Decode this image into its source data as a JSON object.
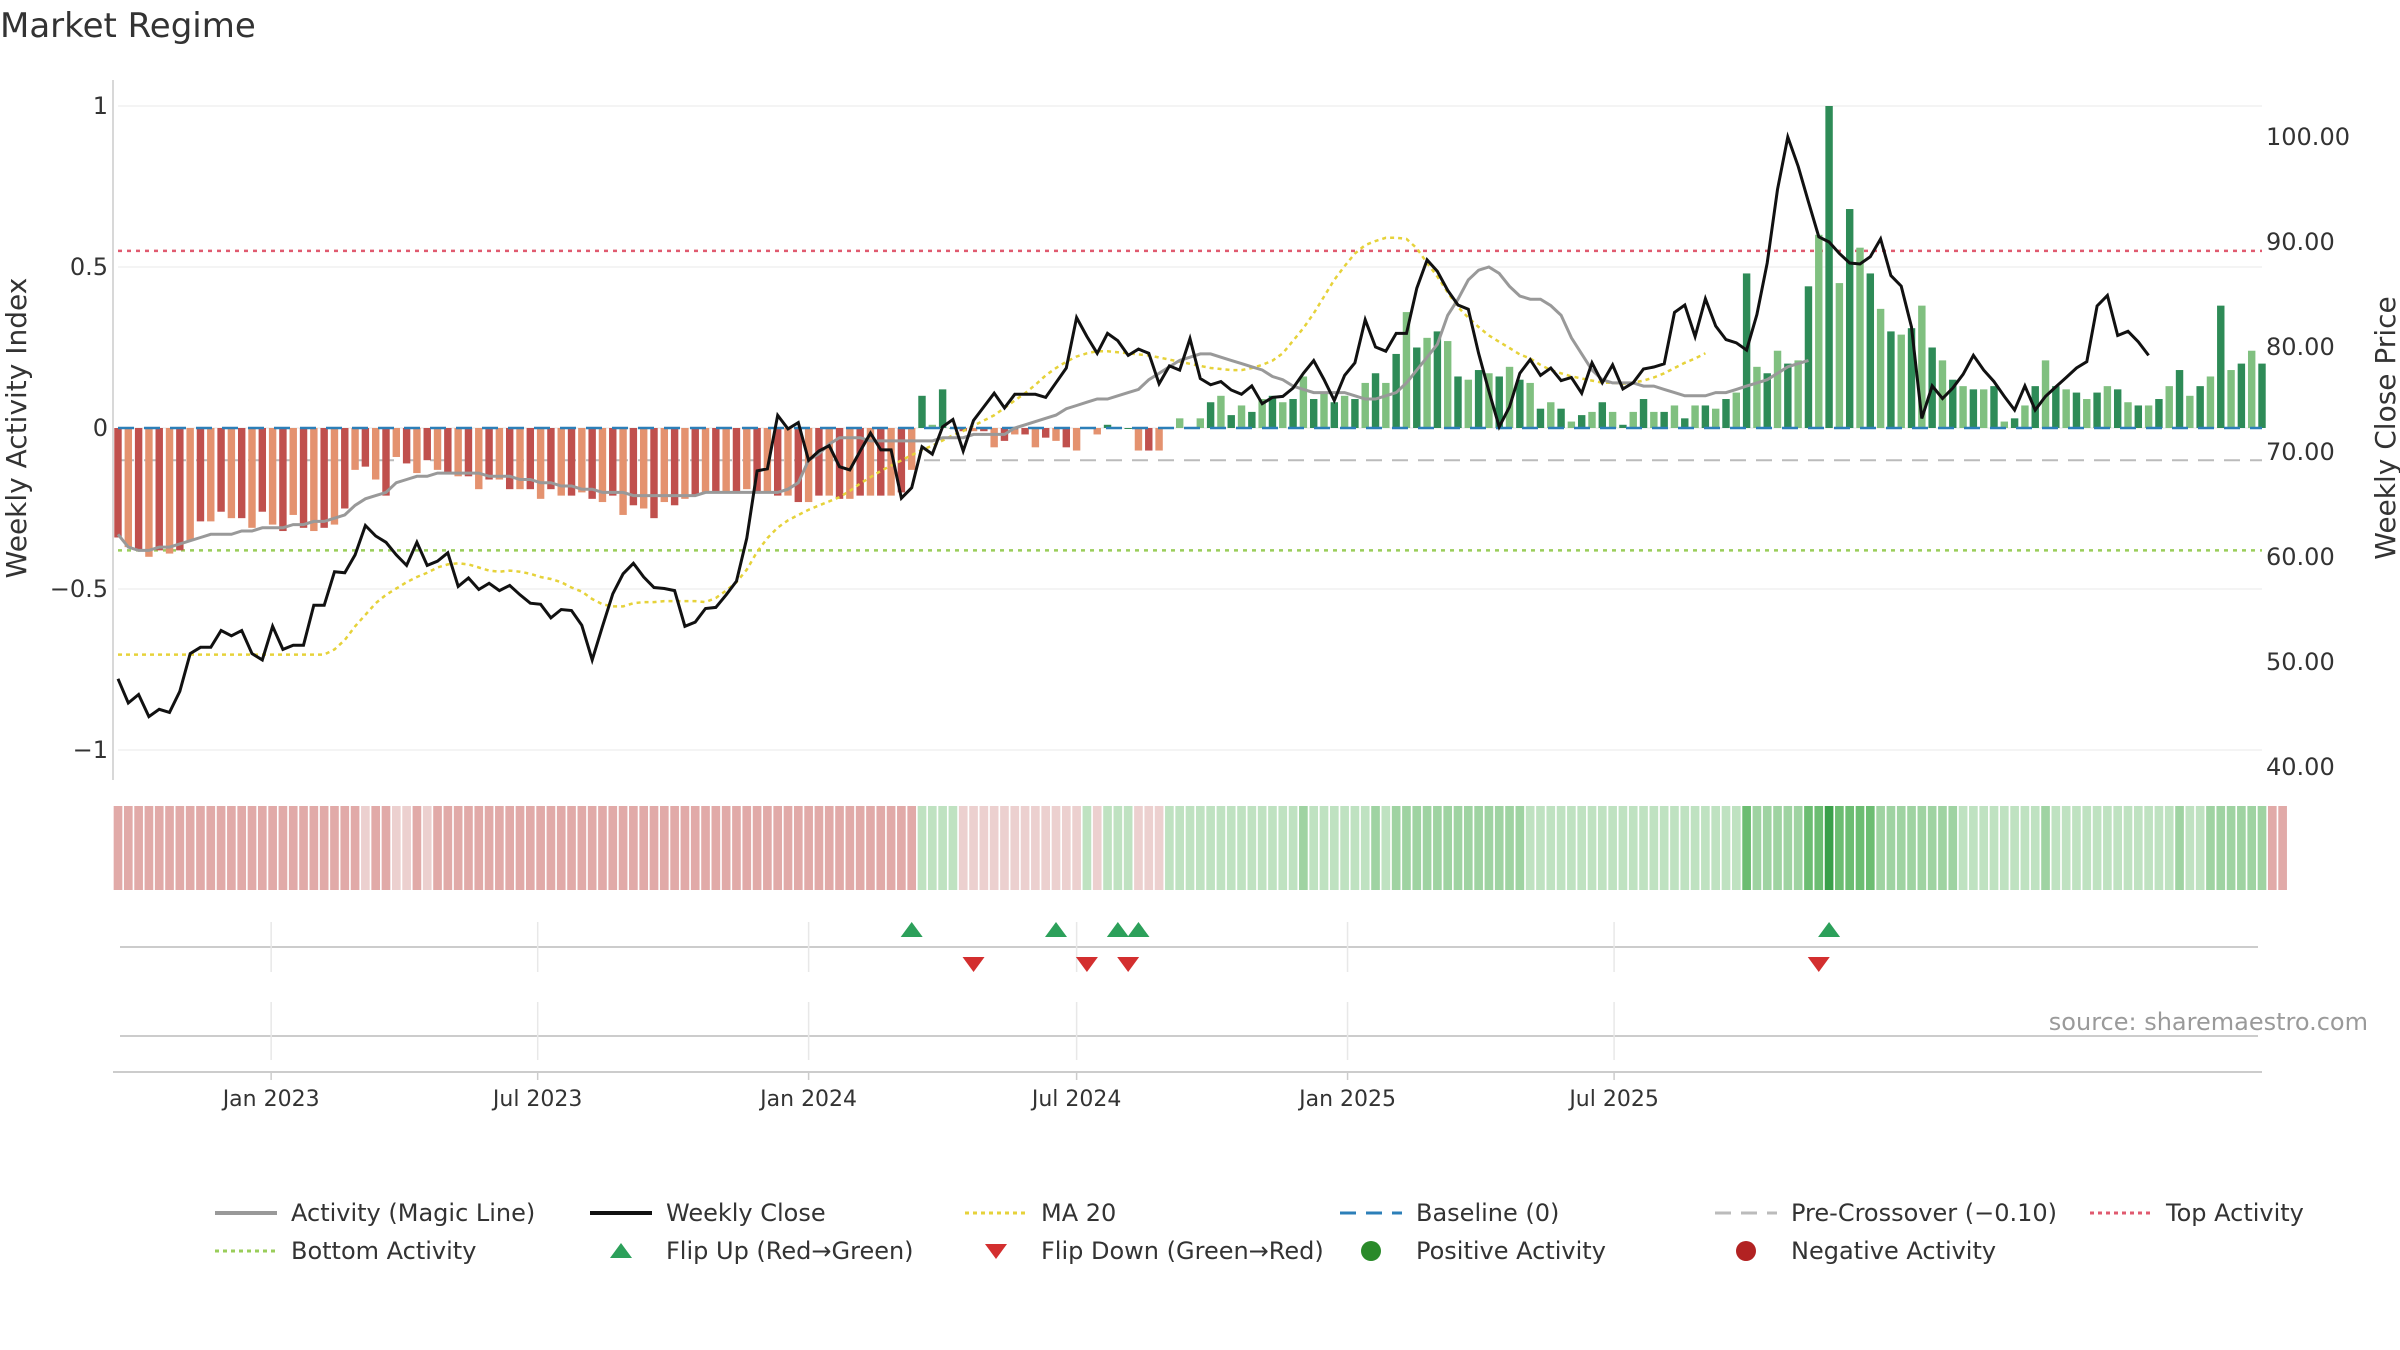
{
  "title": "Market Regime",
  "source": "source: sharemaestro.com",
  "colors": {
    "red_dark": "#c0504d",
    "red_light": "#e4926f",
    "green_dark": "#2e8b57",
    "green_light": "#80c080",
    "weekly_close": "#111111",
    "magic_line": "#999999",
    "ma20": "#e6d23a",
    "baseline": "#2c7fb8",
    "pre_crossover": "#bbbbbb",
    "top_activity": "#e05a6f",
    "bottom_activity": "#9acd5a",
    "flip_up": "#2ca05a",
    "flip_down": "#d32f2f",
    "positive": "#2a8a2a",
    "negative": "#b22222"
  },
  "chart_data": {
    "type": "bar",
    "x_start": "2022-09-19",
    "x_ticks": [
      "Jan 2023",
      "Jul 2023",
      "Jan 2024",
      "Jul 2024",
      "Jan 2025",
      "Jul 2025"
    ],
    "left_axis": {
      "label": "Weekly Activity Index",
      "ticks": [
        "1",
        "0.5",
        "0",
        "−0.5",
        "−1"
      ],
      "ylim": [
        -1.08,
        1.08
      ]
    },
    "right_axis": {
      "label": "Weekly Close Price",
      "ticks": [
        "100.00",
        "90.00",
        "80.00",
        "70.00",
        "60.00",
        "50.00",
        "40.00"
      ],
      "ylim": [
        38.6,
        101.4
      ]
    },
    "reference_lines": {
      "baseline": 0,
      "pre_crossover": -0.1,
      "top_activity": 0.55,
      "bottom_activity": -0.38
    },
    "activity": [
      -0.34,
      -0.37,
      -0.38,
      -0.4,
      -0.38,
      -0.39,
      -0.38,
      -0.35,
      -0.29,
      -0.29,
      -0.26,
      -0.28,
      -0.28,
      -0.31,
      -0.26,
      -0.3,
      -0.32,
      -0.27,
      -0.31,
      -0.32,
      -0.31,
      -0.3,
      -0.25,
      -0.13,
      -0.12,
      -0.16,
      -0.21,
      -0.09,
      -0.11,
      -0.14,
      -0.1,
      -0.13,
      -0.14,
      -0.15,
      -0.15,
      -0.19,
      -0.16,
      -0.16,
      -0.19,
      -0.19,
      -0.19,
      -0.22,
      -0.19,
      -0.21,
      -0.21,
      -0.2,
      -0.22,
      -0.23,
      -0.21,
      -0.27,
      -0.24,
      -0.25,
      -0.28,
      -0.23,
      -0.24,
      -0.22,
      -0.21,
      -0.2,
      -0.2,
      -0.2,
      -0.2,
      -0.19,
      -0.2,
      -0.2,
      -0.21,
      -0.21,
      -0.23,
      -0.23,
      -0.21,
      -0.21,
      -0.22,
      -0.22,
      -0.21,
      -0.21,
      -0.21,
      -0.21,
      -0.2,
      -0.13,
      0.1,
      0.01,
      0.12,
      0.0,
      -0.01,
      -0.01,
      -0.01,
      -0.06,
      -0.04,
      -0.02,
      -0.02,
      -0.06,
      -0.03,
      -0.04,
      -0.06,
      -0.07,
      0.0,
      -0.02,
      0.01,
      0.0,
      0.0,
      -0.07,
      -0.07,
      -0.07,
      0.0,
      0.03,
      0.0,
      0.03,
      0.08,
      0.1,
      0.04,
      0.07,
      0.05,
      0.09,
      0.1,
      0.08,
      0.09,
      0.16,
      0.09,
      0.11,
      0.08,
      0.1,
      0.09,
      0.14,
      0.17,
      0.14,
      0.23,
      0.36,
      0.25,
      0.28,
      0.3,
      0.27,
      0.16,
      0.15,
      0.18,
      0.17,
      0.16,
      0.19,
      0.15,
      0.14,
      0.06,
      0.08,
      0.06,
      0.02,
      0.04,
      0.05,
      0.08,
      0.05,
      0.01,
      0.05,
      0.09,
      0.05,
      0.05,
      0.07,
      0.03,
      0.07,
      0.07,
      0.06,
      0.09,
      0.11,
      0.48,
      0.19,
      0.17,
      0.24,
      0.2,
      0.21,
      0.44,
      0.6,
      1.0,
      0.45,
      0.68,
      0.56,
      0.48,
      0.37,
      0.3,
      0.29,
      0.31,
      0.38,
      0.25,
      0.21,
      0.15,
      0.13,
      0.12,
      0.12,
      0.13,
      0.02,
      0.03,
      0.07,
      0.13,
      0.21,
      0.13,
      0.12,
      0.11,
      0.09,
      0.11,
      0.13,
      0.12,
      0.08,
      0.07,
      0.07,
      0.09,
      0.13,
      0.18,
      0.1,
      0.13,
      0.16,
      0.38,
      0.18,
      0.2,
      0.24,
      0.2
    ],
    "weekly_close": [
      48.4,
      46.1,
      46.9,
      44.8,
      45.5,
      45.2,
      47.2,
      50.8,
      51.4,
      51.4,
      53.0,
      52.5,
      53.0,
      50.8,
      50.2,
      53.4,
      51.2,
      51.6,
      51.6,
      55.4,
      55.4,
      58.6,
      58.5,
      60.2,
      63.0,
      62.0,
      61.4,
      60.2,
      59.2,
      61.4,
      59.2,
      59.6,
      60.4,
      57.2,
      58.0,
      56.9,
      57.5,
      56.8,
      57.3,
      56.4,
      55.6,
      55.5,
      54.2,
      55.0,
      54.9,
      53.5,
      50.2,
      53.4,
      56.5,
      58.4,
      59.4,
      58.1,
      57.1,
      57.0,
      56.8,
      53.4,
      53.8,
      55.1,
      55.2,
      56.4,
      57.7,
      61.8,
      68.2,
      68.4,
      73.5,
      72.2,
      72.8,
      69.2,
      70.1,
      70.6,
      68.6,
      68.3,
      70.1,
      71.8,
      70.2,
      70.2,
      65.6,
      66.6,
      70.5,
      69.8,
      72.4,
      73.1,
      70.1,
      73.0,
      74.3,
      75.6,
      74.2,
      75.5,
      75.5,
      75.5,
      75.2,
      76.6,
      78.0,
      82.8,
      81.0,
      79.4,
      81.3,
      80.6,
      79.2,
      79.8,
      79.4,
      76.5,
      78.2,
      77.8,
      80.8,
      77.0,
      76.4,
      76.7,
      75.9,
      75.5,
      76.3,
      74.6,
      75.2,
      75.3,
      76.1,
      77.5,
      78.7,
      76.9,
      74.9,
      77.3,
      78.5,
      82.6,
      80.0,
      79.6,
      81.3,
      81.3,
      85.6,
      88.3,
      87.2,
      85.4,
      84.0,
      83.6,
      79.4,
      75.8,
      72.4,
      74.3,
      77.5,
      78.8,
      77.3,
      78.0,
      76.8,
      77.1,
      75.6,
      78.5,
      76.6,
      78.3,
      76.0,
      76.6,
      77.9,
      78.1,
      78.4,
      83.3,
      84.0,
      81.0,
      84.6,
      82.0,
      80.7,
      80.4,
      79.7,
      83.1,
      88.0,
      95.0,
      100.0,
      97.2,
      93.8,
      90.5,
      90.0,
      88.9,
      88.0,
      87.9,
      88.6,
      90.3,
      86.8,
      85.8,
      81.9,
      73.2,
      76.3,
      75.1,
      76.1,
      77.4,
      79.2,
      77.8,
      76.7,
      75.3,
      74.0,
      76.3,
      74.0,
      75.3,
      76.2,
      77.1,
      78.0,
      78.6,
      83.9,
      84.9,
      81.1,
      81.5,
      80.5,
      79.2
    ],
    "magic_line": [
      -0.33,
      -0.37,
      -0.38,
      -0.38,
      -0.37,
      -0.37,
      -0.36,
      -0.35,
      -0.34,
      -0.33,
      -0.33,
      -0.33,
      -0.32,
      -0.32,
      -0.31,
      -0.31,
      -0.31,
      -0.3,
      -0.3,
      -0.29,
      -0.29,
      -0.28,
      -0.27,
      -0.24,
      -0.22,
      -0.21,
      -0.2,
      -0.17,
      -0.16,
      -0.15,
      -0.15,
      -0.14,
      -0.14,
      -0.14,
      -0.14,
      -0.14,
      -0.15,
      -0.15,
      -0.15,
      -0.16,
      -0.16,
      -0.17,
      -0.17,
      -0.18,
      -0.18,
      -0.19,
      -0.19,
      -0.2,
      -0.2,
      -0.2,
      -0.21,
      -0.21,
      -0.21,
      -0.21,
      -0.21,
      -0.21,
      -0.21,
      -0.2,
      -0.2,
      -0.2,
      -0.2,
      -0.2,
      -0.2,
      -0.2,
      -0.2,
      -0.19,
      -0.17,
      -0.1,
      -0.08,
      -0.05,
      -0.03,
      -0.03,
      -0.03,
      -0.04,
      -0.04,
      -0.04,
      -0.04,
      -0.04,
      -0.04,
      -0.04,
      -0.03,
      -0.03,
      -0.03,
      -0.02,
      -0.02,
      -0.02,
      -0.02,
      0.0,
      0.01,
      0.02,
      0.03,
      0.04,
      0.06,
      0.07,
      0.08,
      0.09,
      0.09,
      0.1,
      0.11,
      0.12,
      0.15,
      0.17,
      0.19,
      0.21,
      0.22,
      0.23,
      0.23,
      0.22,
      0.21,
      0.2,
      0.19,
      0.18,
      0.16,
      0.15,
      0.13,
      0.12,
      0.11,
      0.11,
      0.11,
      0.11,
      0.1,
      0.09,
      0.09,
      0.1,
      0.11,
      0.14,
      0.18,
      0.22,
      0.26,
      0.35,
      0.4,
      0.46,
      0.49,
      0.5,
      0.48,
      0.44,
      0.41,
      0.4,
      0.4,
      0.38,
      0.35,
      0.28,
      0.23,
      0.18,
      0.15,
      0.14,
      0.14,
      0.14,
      0.13,
      0.13,
      0.12,
      0.11,
      0.1,
      0.1,
      0.1,
      0.11,
      0.11,
      0.12,
      0.13,
      0.14,
      0.15,
      0.17,
      0.19,
      0.2,
      0.21
    ],
    "ma20": [
      50.7,
      50.7,
      50.7,
      50.7,
      50.7,
      50.7,
      50.7,
      50.7,
      50.7,
      50.7,
      50.7,
      50.7,
      50.7,
      50.7,
      50.7,
      50.7,
      50.7,
      50.7,
      50.7,
      50.7,
      50.7,
      51.2,
      52.1,
      53.4,
      54.5,
      55.6,
      56.4,
      57.0,
      57.6,
      58.1,
      58.5,
      59.0,
      59.3,
      59.4,
      59.3,
      59.0,
      58.7,
      58.6,
      58.7,
      58.6,
      58.4,
      58.1,
      57.9,
      57.6,
      57.1,
      56.7,
      56.0,
      55.5,
      55.3,
      55.3,
      55.6,
      55.7,
      55.7,
      55.8,
      55.8,
      55.8,
      55.8,
      55.7,
      56.1,
      56.8,
      57.6,
      58.8,
      60.5,
      61.8,
      62.8,
      63.5,
      64.0,
      64.5,
      64.9,
      65.3,
      65.7,
      66.3,
      67.0,
      67.6,
      68.2,
      68.7,
      69.2,
      69.7,
      70.2,
      70.6,
      71.1,
      71.6,
      72.0,
      72.5,
      73.0,
      73.5,
      74.2,
      74.9,
      75.6,
      76.4,
      77.3,
      78.0,
      78.6,
      79.1,
      79.4,
      79.6,
      79.6,
      79.5,
      79.4,
      79.3,
      79.2,
      79.0,
      78.8,
      78.6,
      78.4,
      78.2,
      78.0,
      77.9,
      77.8,
      77.8,
      78.0,
      78.3,
      78.7,
      79.4,
      80.6,
      81.8,
      83.2,
      84.8,
      86.4,
      87.7,
      88.9,
      89.7,
      90.1,
      90.4,
      90.4,
      90.3,
      89.4,
      88.0,
      86.7,
      85.2,
      83.8,
      82.8,
      81.9,
      81.1,
      80.5,
      79.9,
      79.3,
      78.9,
      78.3,
      77.8,
      77.5,
      77.2,
      77.0,
      76.8,
      76.6,
      76.6,
      76.5,
      76.6,
      76.8,
      77.1,
      77.5,
      78.0,
      78.5,
      78.9,
      79.4
    ]
  },
  "regime_strip": [
    0.55,
    0.55,
    0.55,
    0.55,
    0.55,
    0.55,
    0.55,
    0.55,
    0.55,
    0.55,
    0.55,
    0.55,
    0.55,
    0.55,
    0.55,
    0.55,
    0.55,
    0.55,
    0.55,
    0.55,
    0.55,
    0.55,
    0.55,
    0.4,
    0.4,
    0.4,
    0.4,
    0.4,
    0.4,
    0.4,
    0.4,
    0.4,
    0.4,
    0.4,
    0.4,
    0.4,
    0.4,
    0.4,
    0.4,
    0.4,
    0.4,
    0.4,
    0.4,
    0.4,
    0.4,
    0.4,
    0.4,
    0.4,
    0.4,
    0.4,
    0.4,
    0.4,
    0.4,
    0.4,
    0.4,
    0.4,
    0.4,
    0.4,
    0.4,
    0.4,
    0.4,
    0.4,
    0.4,
    0.4,
    0.4,
    0.4,
    0.4,
    0.4,
    0.4,
    0.4,
    0.4,
    0.4,
    0.4,
    0.4,
    0.4,
    0.4,
    0.4,
    0.4,
    0.4,
    0.4,
    0.4,
    0.4,
    0.4,
    0.4,
    0.4,
    0.4,
    0.4,
    0.4,
    0.4,
    0.4,
    0.4,
    0.4,
    0.4,
    0.4,
    0.4,
    0.4,
    0.4,
    0.4,
    0.4,
    0.4,
    0.4,
    0.4,
    0.4,
    0.4,
    0.4,
    0.4,
    0.4,
    0.4,
    0.4,
    0.4,
    0.4,
    0.4,
    0.4,
    0.4,
    0.4,
    0.4,
    0.4,
    0.4,
    0.4,
    0.4,
    0.4,
    0.4,
    0.4,
    0.4,
    0.4,
    0.4,
    0.4,
    0.4,
    0.4,
    0.4,
    0.4,
    0.4,
    0.4,
    0.4,
    0.4,
    0.4,
    0.4,
    0.4,
    0.4,
    0.4,
    0.4,
    0.4,
    0.4,
    0.4,
    0.4,
    0.4,
    0.4,
    0.4,
    0.4,
    0.4,
    0.4,
    0.4,
    0.4,
    0.4,
    0.4,
    0.4,
    0.4,
    0.4,
    0.4,
    0.4,
    0.4,
    0.4,
    0.4,
    0.4,
    0.4,
    0.4,
    0.4,
    0.4,
    0.4,
    0.4,
    0.4,
    0.4,
    0.4,
    0.4,
    0.4,
    0.4,
    0.4,
    0.4,
    0.4,
    0.4,
    0.4,
    0.4,
    0.4,
    0.4,
    0.4,
    0.4,
    0.4,
    0.4,
    0.4,
    0.4,
    0.4,
    0.4,
    0.4,
    0.4,
    0.4,
    0.4,
    0.4,
    0.4,
    0.4,
    0.4,
    0.4,
    0.4,
    0.4,
    0.4,
    0.4,
    0.4,
    0.4,
    0.4,
    0.4,
    0.4,
    0.4
  ],
  "flip_up_weeks": [
    77,
    91,
    97,
    99,
    166
  ],
  "flip_down_weeks": [
    83,
    94,
    98,
    165
  ],
  "legend": [
    {
      "label": "Activity (Magic Line)",
      "swatch": "line-solid-gray"
    },
    {
      "label": "Weekly Close",
      "swatch": "line-solid-black"
    },
    {
      "label": "MA 20",
      "swatch": "line-dotted-yellow"
    },
    {
      "label": "Baseline (0)",
      "swatch": "line-dashed-blue"
    },
    {
      "label": "Pre-Crossover (−0.10)",
      "swatch": "line-dashed-gray"
    },
    {
      "label": "Top Activity",
      "swatch": "line-dotted-red"
    },
    {
      "label": "Bottom Activity",
      "swatch": "line-dotted-green"
    },
    {
      "label": "Flip Up (Red→Green)",
      "swatch": "triangle-up-green"
    },
    {
      "label": "Flip Down (Green→Red)",
      "swatch": "triangle-down-red"
    },
    {
      "label": "Positive Activity",
      "swatch": "circle-green"
    },
    {
      "label": "Negative Activity",
      "swatch": "circle-red"
    }
  ]
}
